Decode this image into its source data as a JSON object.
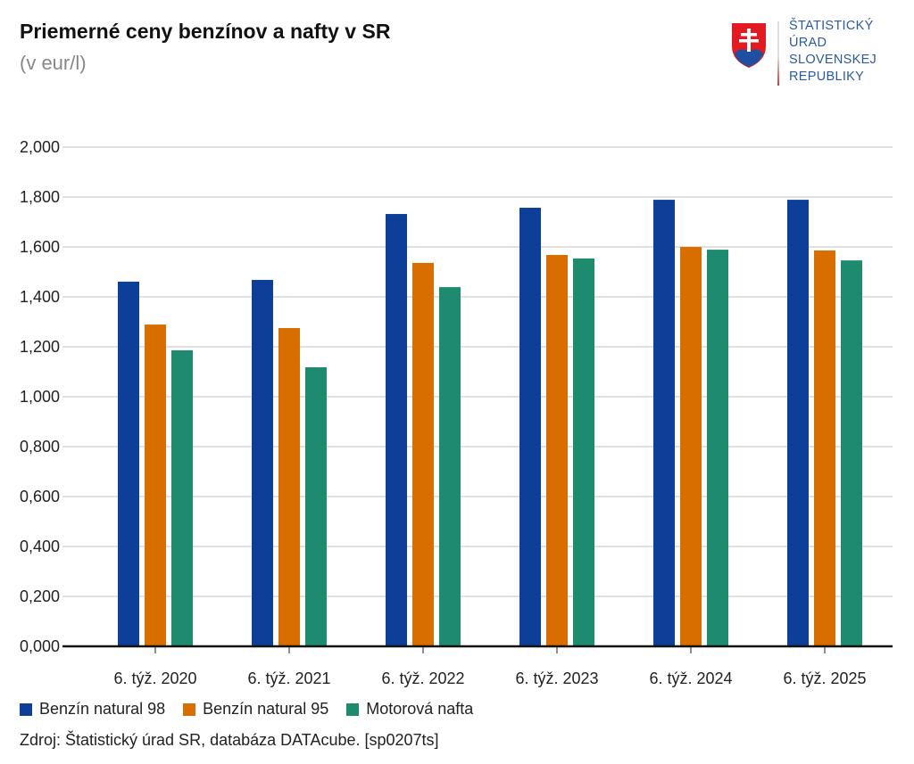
{
  "logo": {
    "lines": [
      "ŠTATISTICKÝ",
      "ÚRAD",
      "SLOVENSKEJ",
      "REPUBLIKY"
    ]
  },
  "source": "Zdroj: Štatistický úrad SR, databáza DATAcube. [sp0207ts]",
  "chart_data": {
    "type": "bar",
    "title": "Priemerné ceny benzínov a nafty v SR",
    "subtitle": "(v eur/l)",
    "categories": [
      "6. týž. 2020",
      "6. týž. 2021",
      "6. týž. 2022",
      "6. týž. 2023",
      "6. týž. 2024",
      "6. týž. 2025"
    ],
    "series": [
      {
        "name": "Benzín natural 98",
        "color": "#0d3f99",
        "values": [
          1.461,
          1.468,
          1.732,
          1.757,
          1.789,
          1.789
        ]
      },
      {
        "name": "Benzín natural 95",
        "color": "#d96e00",
        "values": [
          1.289,
          1.275,
          1.536,
          1.568,
          1.6,
          1.586
        ]
      },
      {
        "name": "Motorová nafta",
        "color": "#1e8a6e",
        "values": [
          1.186,
          1.118,
          1.439,
          1.554,
          1.589,
          1.546
        ]
      }
    ],
    "yticks": [
      "0,000",
      "0,200",
      "0,400",
      "0,600",
      "0,800",
      "1,000",
      "1,200",
      "1,400",
      "1,600",
      "1,800",
      "2,000"
    ],
    "ylim": [
      0,
      2
    ],
    "grid": true,
    "legend": "bottom-left"
  }
}
